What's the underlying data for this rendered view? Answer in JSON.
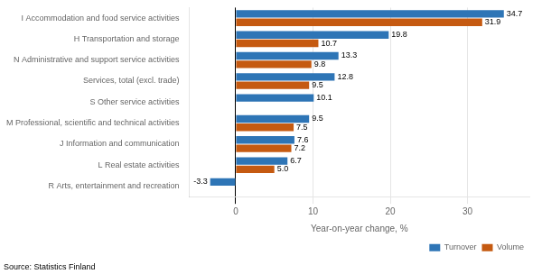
{
  "chart_data": {
    "type": "bar",
    "orientation": "horizontal",
    "categories": [
      "R Arts, entertainment and recreation",
      "L Real estate activities",
      "J Information and communication",
      "M Professional, scientific and technical activities",
      "S Other service activities",
      "Services, total (excl. trade)",
      "N Administrative and support service activities",
      "H Transportation and storage",
      "I Accommodation and food service activities"
    ],
    "series": [
      {
        "name": "Turnover",
        "color": "#2E75B6",
        "values": [
          -3.3,
          6.7,
          7.6,
          9.5,
          10.1,
          12.8,
          13.3,
          19.8,
          34.7
        ]
      },
      {
        "name": "Volume",
        "color": "#C55A11",
        "values": [
          null,
          5.0,
          7.2,
          7.5,
          null,
          9.5,
          9.8,
          10.7,
          31.9
        ],
        "value_labels": [
          null,
          "5.0",
          "7.2",
          "7.5",
          null,
          "9.5",
          "9.8",
          "10.7",
          "31.9"
        ]
      }
    ],
    "x_label": "Year-on-year change, %",
    "xlim": [
      -6,
      38
    ],
    "xticks": [
      0,
      10,
      20,
      30
    ],
    "grid": true,
    "legend": "lower right",
    "data_labels": true,
    "annotations": [
      "Source: Statistics Finland"
    ]
  }
}
